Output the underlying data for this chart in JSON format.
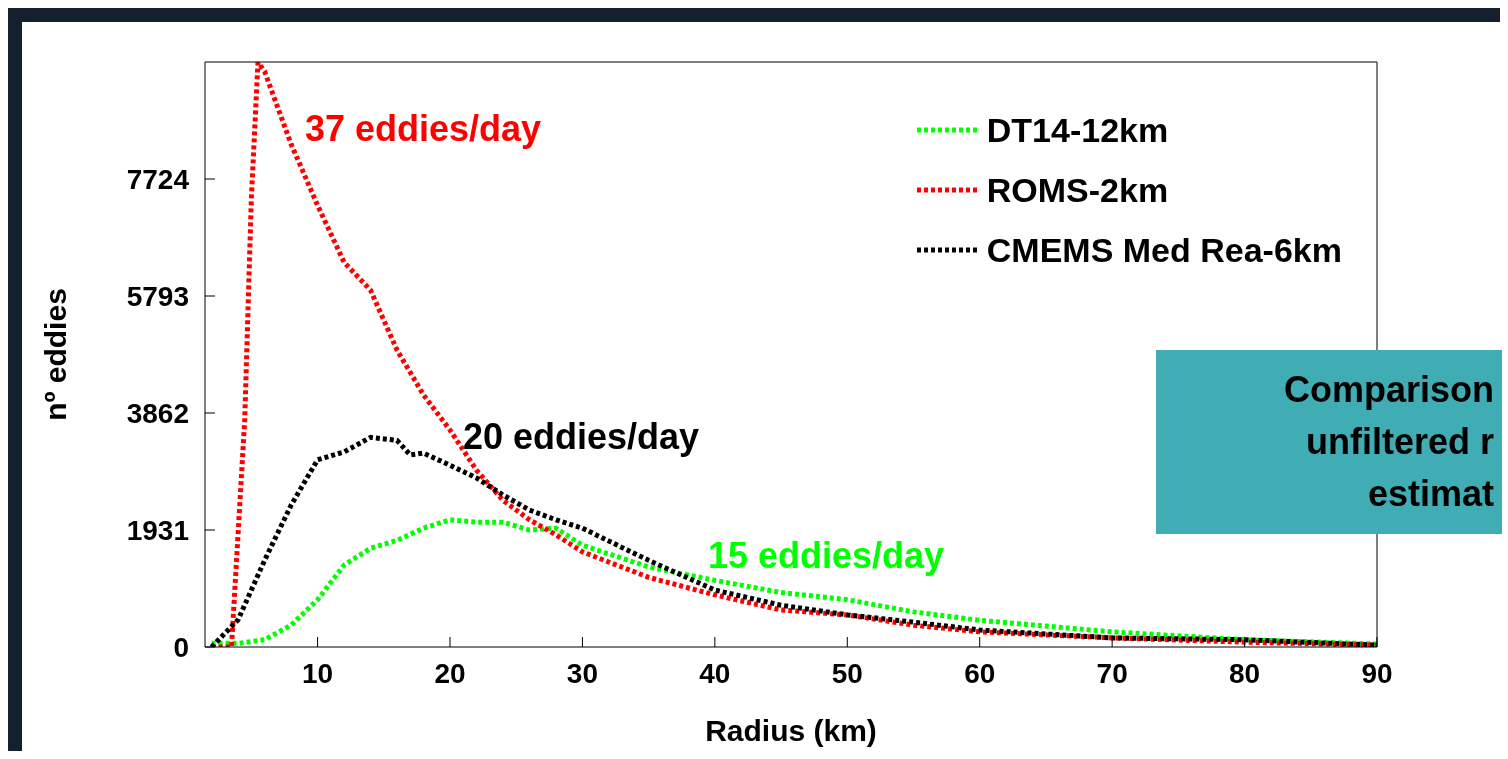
{
  "chart_data": {
    "type": "line",
    "xlabel": "Radius (km)",
    "ylabel": "nº eddies",
    "xlim": [
      1.5,
      90
    ],
    "xticks": [
      10,
      20,
      30,
      40,
      50,
      60,
      70,
      80,
      90
    ],
    "ylim": [
      0,
      9655
    ],
    "yticks": [
      0,
      1931,
      3862,
      5793,
      7724
    ],
    "grid": false,
    "legend": "top right",
    "line_style": "dotted",
    "marker": "none",
    "series": [
      {
        "name": "DT14-12km",
        "color": "#00ff00",
        "x": [
          2,
          4,
          6,
          8,
          10,
          12,
          14,
          16,
          18,
          20,
          22,
          24,
          26,
          28,
          30,
          35,
          40,
          45,
          50,
          55,
          60,
          70,
          80,
          90
        ],
        "values": [
          60,
          60,
          120,
          360,
          780,
          1350,
          1630,
          1760,
          1960,
          2100,
          2060,
          2060,
          1930,
          1960,
          1680,
          1320,
          1100,
          900,
          780,
          580,
          440,
          250,
          120,
          50
        ]
      },
      {
        "name": "ROMS-2km",
        "color": "#ff0000",
        "x": [
          2,
          3.5,
          4.5,
          5,
          5.5,
          6,
          8,
          10,
          12,
          14,
          16,
          18,
          20,
          22,
          24,
          26,
          28,
          30,
          35,
          40,
          45,
          50,
          55,
          60,
          70,
          80,
          90
        ],
        "values": [
          0,
          0,
          3750,
          7400,
          9650,
          9500,
          8300,
          7290,
          6350,
          5890,
          4900,
          4160,
          3580,
          2920,
          2420,
          2100,
          1850,
          1570,
          1150,
          860,
          610,
          530,
          360,
          250,
          150,
          80,
          30
        ]
      },
      {
        "name": "CMEMS Med Rea-6km",
        "color": "#000000",
        "x": [
          2,
          4,
          5,
          6,
          8,
          10,
          12,
          14,
          16,
          17,
          18,
          20,
          22,
          24,
          26,
          28,
          30,
          35,
          40,
          45,
          50,
          55,
          60,
          70,
          80,
          90
        ],
        "values": [
          0,
          450,
          940,
          1430,
          2340,
          3090,
          3220,
          3460,
          3410,
          3170,
          3200,
          3000,
          2790,
          2510,
          2260,
          2100,
          1960,
          1430,
          940,
          690,
          530,
          410,
          280,
          150,
          120,
          30
        ]
      }
    ],
    "annotations": [
      "15 eddies/day",
      "37 eddies/day",
      "20 eddies/day",
      "Comparison\nunfiltered r\nestimat"
    ]
  }
}
